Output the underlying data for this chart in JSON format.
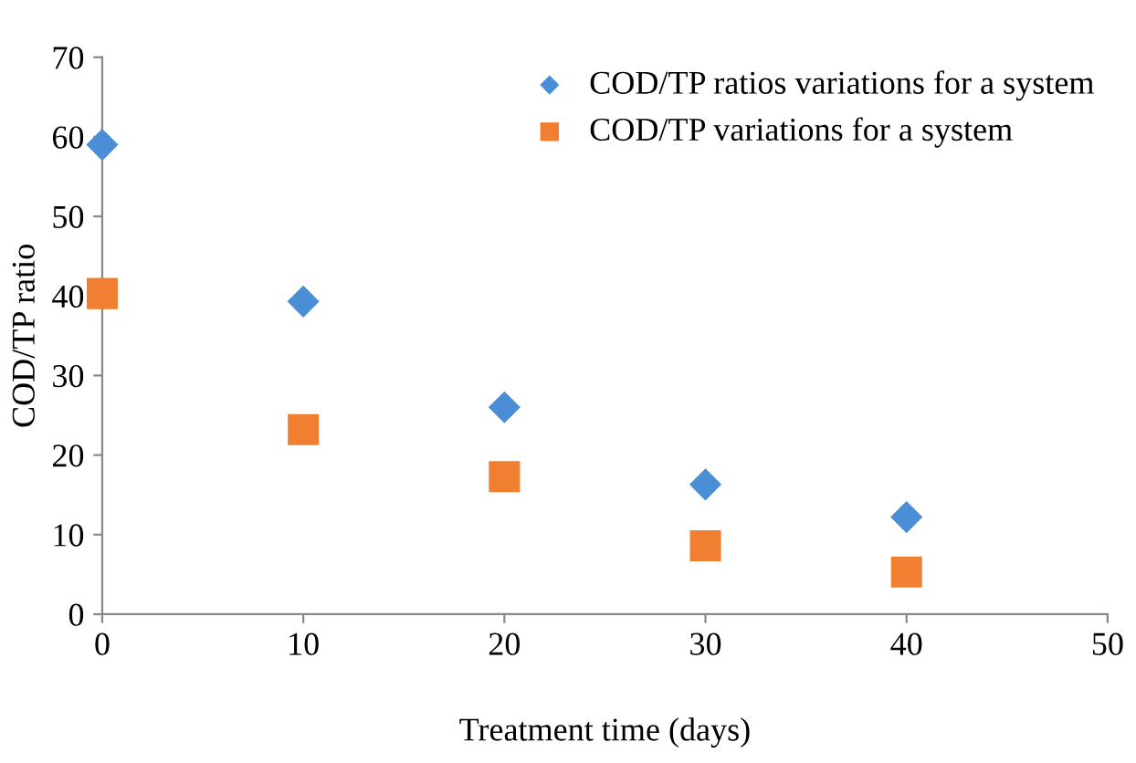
{
  "chart_data": {
    "type": "scatter",
    "xlabel": "Treatment time (days)",
    "ylabel": "COD/TP ratio",
    "x": [
      0,
      10,
      20,
      30,
      40
    ],
    "series": [
      {
        "name": "COD/TP ratios variations for a system",
        "color": "#4a8fd6",
        "marker": "diamond",
        "values": [
          59,
          39.3,
          26,
          16.3,
          12.2
        ]
      },
      {
        "name": "COD/TP variations for a system",
        "color": "#f07f32",
        "marker": "square",
        "values": [
          40.3,
          23.2,
          17.3,
          8.6,
          5.3
        ]
      }
    ],
    "xlim": [
      0,
      50
    ],
    "xticks": [
      0,
      10,
      20,
      30,
      40,
      50
    ],
    "ylim": [
      0,
      70
    ],
    "yticks": [
      0,
      10,
      20,
      30,
      40,
      50,
      60,
      70
    ],
    "grid": false,
    "legend": "top right"
  }
}
